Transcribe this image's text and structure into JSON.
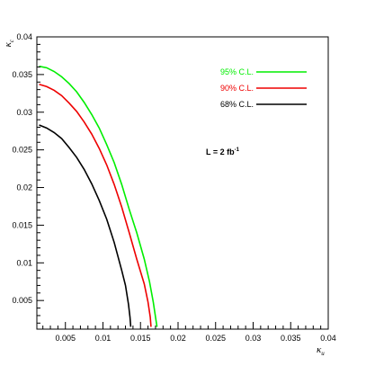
{
  "chart_data": {
    "type": "line",
    "title": "",
    "xlabel": "κ",
    "xlabel_sub": "u",
    "ylabel": "κ",
    "ylabel_sub": "c",
    "xlim": [
      0.0012,
      0.04
    ],
    "ylim": [
      0.0012,
      0.04
    ],
    "x_ticks": [
      0.005,
      0.01,
      0.015,
      0.02,
      0.025,
      0.03,
      0.035,
      0.04
    ],
    "x_tick_labels": [
      "0.005",
      "0.01",
      "0.015",
      "0.02",
      "0.025",
      "0.03",
      "0.035",
      "0.04"
    ],
    "y_ticks": [
      0.005,
      0.01,
      0.015,
      0.02,
      0.025,
      0.03,
      0.035,
      0.04
    ],
    "y_tick_labels": [
      "0.005",
      "0.01",
      "0.015",
      "0.02",
      "0.025",
      "0.03",
      "0.035",
      "0.04"
    ],
    "grid": false,
    "legend_position": "top-right",
    "annotation": {
      "text": "L = 2 fb",
      "superscript": "-1"
    },
    "series": [
      {
        "name": "95% C.L.",
        "color": "#00ee00",
        "points": [
          [
            0.0015,
            0.0361
          ],
          [
            0.0025,
            0.0359
          ],
          [
            0.0035,
            0.0354
          ],
          [
            0.0045,
            0.0347
          ],
          [
            0.0055,
            0.0338
          ],
          [
            0.0065,
            0.0327
          ],
          [
            0.0075,
            0.0313
          ],
          [
            0.0085,
            0.0297
          ],
          [
            0.0095,
            0.0279
          ],
          [
            0.0105,
            0.0257
          ],
          [
            0.0115,
            0.0233
          ],
          [
            0.0125,
            0.0204
          ],
          [
            0.0135,
            0.0171
          ],
          [
            0.0145,
            0.014
          ],
          [
            0.0155,
            0.0105
          ],
          [
            0.0162,
            0.0075
          ],
          [
            0.0167,
            0.0048
          ],
          [
            0.017,
            0.0028
          ],
          [
            0.0172,
            0.0015
          ]
        ]
      },
      {
        "name": "90% C.L.",
        "color": "#ee0000",
        "points": [
          [
            0.0015,
            0.0337
          ],
          [
            0.0025,
            0.0334
          ],
          [
            0.0035,
            0.0329
          ],
          [
            0.0045,
            0.0322
          ],
          [
            0.0055,
            0.0312
          ],
          [
            0.0065,
            0.0301
          ],
          [
            0.0075,
            0.0287
          ],
          [
            0.0085,
            0.0271
          ],
          [
            0.0095,
            0.0252
          ],
          [
            0.0105,
            0.023
          ],
          [
            0.0115,
            0.0204
          ],
          [
            0.0125,
            0.0174
          ],
          [
            0.0135,
            0.014
          ],
          [
            0.0145,
            0.0105
          ],
          [
            0.0155,
            0.0072
          ],
          [
            0.016,
            0.0048
          ],
          [
            0.0163,
            0.0028
          ],
          [
            0.0164,
            0.0015
          ]
        ]
      },
      {
        "name": "68% C.L.",
        "color": "#000000",
        "points": [
          [
            0.0015,
            0.0283
          ],
          [
            0.0025,
            0.0279
          ],
          [
            0.0035,
            0.0273
          ],
          [
            0.0045,
            0.0265
          ],
          [
            0.0055,
            0.0253
          ],
          [
            0.0065,
            0.024
          ],
          [
            0.0075,
            0.0224
          ],
          [
            0.0085,
            0.0205
          ],
          [
            0.0095,
            0.0183
          ],
          [
            0.0105,
            0.0158
          ],
          [
            0.0115,
            0.0127
          ],
          [
            0.0125,
            0.009
          ],
          [
            0.013,
            0.007
          ],
          [
            0.0134,
            0.0045
          ],
          [
            0.0136,
            0.0028
          ],
          [
            0.0137,
            0.0015
          ]
        ]
      }
    ]
  }
}
